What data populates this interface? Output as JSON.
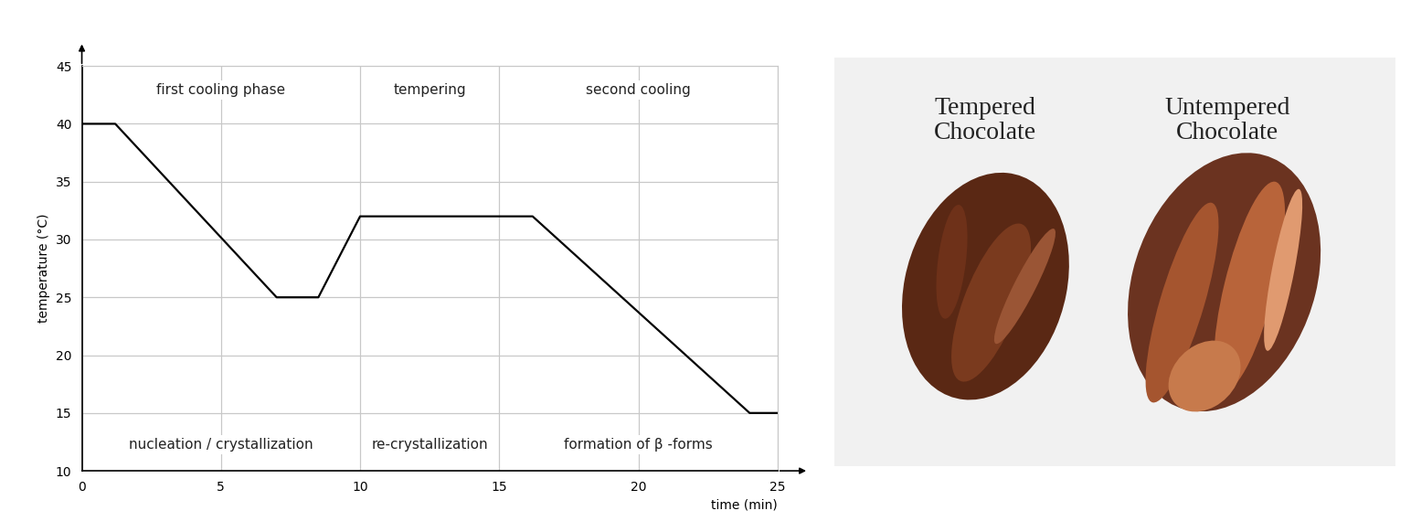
{
  "chart_data": {
    "type": "line",
    "x": [
      0,
      1.2,
      7,
      8.5,
      10,
      16.2,
      24,
      25
    ],
    "values": [
      40,
      40,
      25,
      25,
      32,
      32,
      15,
      15
    ],
    "color": "#000000",
    "xlabel": "time (min)",
    "ylabel": "temperature (°C)",
    "xlim": [
      0,
      25
    ],
    "ylim": [
      10,
      45
    ],
    "xticks": [
      0,
      5,
      10,
      15,
      20,
      25
    ],
    "yticks": [
      10,
      15,
      20,
      25,
      30,
      35,
      40,
      45
    ],
    "grid": true,
    "annotations": [
      {
        "phase": "first cooling phase",
        "process": "nucleation / crystallization"
      },
      {
        "phase": "tempering",
        "process": "re-crystallization"
      },
      {
        "phase": "second cooling",
        "process": "formation of β -forms"
      }
    ]
  },
  "photo": {
    "labels": [
      "Tempered\nChocolate",
      "Untempered\nChocolate"
    ]
  }
}
